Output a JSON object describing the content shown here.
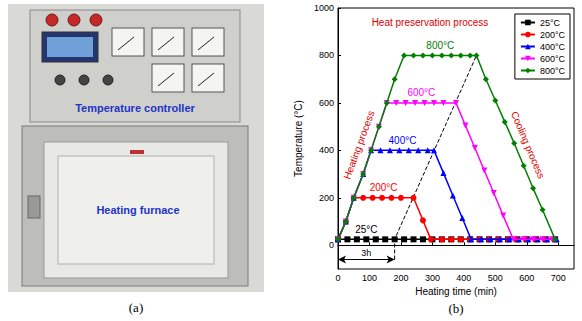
{
  "photo": {
    "panel_label": "(a)",
    "labels": [
      "Temperature controller",
      "Heating furnace"
    ]
  },
  "chart_data": {
    "type": "line",
    "panel_label": "(b)",
    "x_label": "Heating time (min)",
    "y_label": "Temperature (°C)",
    "xlim": [
      0,
      750
    ],
    "xticks": [
      0,
      100,
      200,
      300,
      400,
      500,
      600,
      700
    ],
    "ylim": [
      -100,
      1000
    ],
    "yticks": [
      0,
      200,
      400,
      600,
      800,
      1000
    ],
    "grid": false,
    "legend": "top right",
    "annotations": [
      "Heat preservation process",
      "Heating process",
      "Cooling process"
    ],
    "hold_arrow": {
      "label": "3h",
      "x": [
        0,
        180
      ],
      "y": -60
    },
    "hold_line": {
      "x": [
        180,
        180,
        440
      ],
      "values": [
        -60,
        25,
        800
      ]
    },
    "series": [
      {
        "name": "25°C",
        "color": "#000000",
        "marker": "square",
        "x": [
          0,
          30,
          60,
          90,
          120,
          150,
          180,
          210,
          240,
          270,
          300,
          330,
          360,
          390,
          420,
          450,
          480,
          510,
          540,
          570,
          600,
          630,
          660,
          690
        ],
        "values": [
          25,
          25,
          25,
          25,
          25,
          25,
          25,
          25,
          25,
          25,
          25,
          25,
          25,
          25,
          25,
          25,
          25,
          25,
          25,
          25,
          25,
          25,
          25,
          25
        ]
      },
      {
        "name": "200°C",
        "color": "#ff0000",
        "marker": "circle",
        "x": [
          0,
          25,
          50,
          80,
          110,
          140,
          170,
          200,
          240,
          270,
          295,
          330,
          360,
          390,
          420,
          450,
          480,
          510,
          540,
          570,
          600,
          630,
          660,
          690
        ],
        "values": [
          25,
          100,
          200,
          200,
          200,
          200,
          200,
          200,
          200,
          105,
          25,
          25,
          25,
          25,
          25,
          25,
          25,
          25,
          25,
          25,
          25,
          25,
          25,
          25
        ]
      },
      {
        "name": "400°C",
        "color": "#0000ff",
        "marker": "triangle",
        "x": [
          0,
          25,
          50,
          80,
          105,
          135,
          165,
          195,
          225,
          255,
          285,
          305,
          335,
          365,
          395,
          423,
          455,
          485,
          515,
          545,
          575,
          605,
          635,
          665,
          695
        ],
        "values": [
          25,
          100,
          200,
          300,
          400,
          400,
          400,
          400,
          400,
          400,
          400,
          400,
          305,
          210,
          115,
          25,
          25,
          25,
          25,
          25,
          25,
          25,
          25,
          25,
          25
        ]
      },
      {
        "name": "600°C",
        "color": "#ff00ff",
        "marker": "triangle-down",
        "x": [
          0,
          25,
          50,
          80,
          105,
          130,
          155,
          185,
          215,
          245,
          275,
          305,
          335,
          375,
          405,
          435,
          465,
          495,
          525,
          557,
          590,
          620,
          650,
          680
        ],
        "values": [
          25,
          100,
          200,
          300,
          400,
          500,
          600,
          600,
          600,
          600,
          600,
          600,
          600,
          600,
          505,
          410,
          315,
          220,
          125,
          25,
          25,
          25,
          25,
          25
        ]
      },
      {
        "name": "800°C",
        "color": "#008000",
        "marker": "diamond",
        "x": [
          0,
          25,
          50,
          80,
          105,
          130,
          155,
          180,
          210,
          240,
          270,
          300,
          330,
          360,
          390,
          420,
          440,
          470,
          500,
          530,
          560,
          590,
          620,
          650,
          690
        ],
        "values": [
          25,
          100,
          200,
          300,
          400,
          500,
          600,
          700,
          800,
          800,
          800,
          800,
          800,
          800,
          800,
          800,
          800,
          700,
          610,
          520,
          430,
          335,
          240,
          150,
          25
        ]
      }
    ]
  }
}
